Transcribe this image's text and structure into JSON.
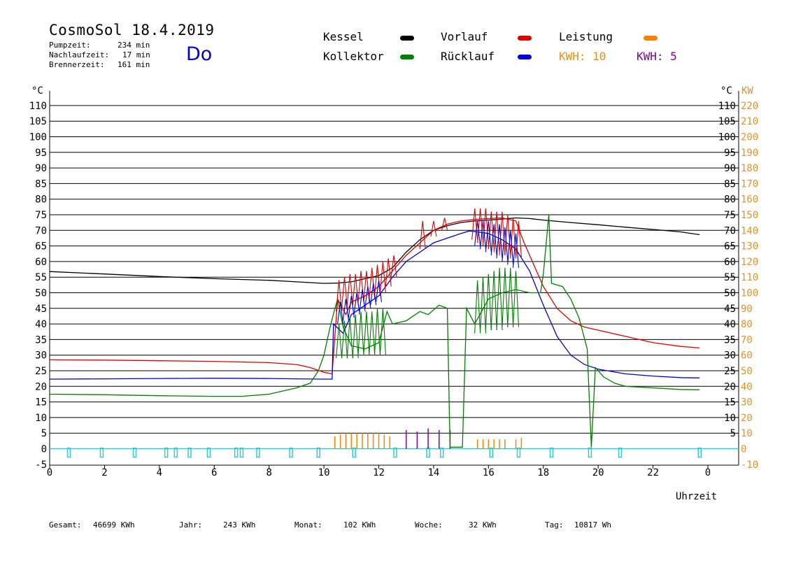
{
  "header": {
    "title": "CosmoSol 18.4.2019",
    "day": "Do",
    "stats": [
      {
        "label": "Pumpzeit:",
        "value": "234 min"
      },
      {
        "label": "Nachlaufzeit:",
        "value": "17 min"
      },
      {
        "label": "Brennerzeit:",
        "value": "161 min"
      }
    ]
  },
  "legend": [
    {
      "label": "Kessel",
      "color": "#000000"
    },
    {
      "label": "Vorlauf",
      "color": "#e00000"
    },
    {
      "label": "Leistung",
      "color": "#ff8000"
    },
    {
      "label": "Kollektor",
      "color": "#008000"
    },
    {
      "label": "Rücklauf",
      "color": "#0000dd"
    }
  ],
  "kwh": [
    {
      "text": "KWH: 10",
      "color": "#e8901e"
    },
    {
      "text": "KWH: 5",
      "color": "#8000a0"
    }
  ],
  "footer": [
    {
      "label": "Gesamt:",
      "value": "46699 KWh"
    },
    {
      "label": "Jahr:",
      "value": "243 KWh"
    },
    {
      "label": "Monat:",
      "value": "102 KWh"
    },
    {
      "label": "Woche:",
      "value": "32 KWh"
    },
    {
      "label": "Tag:",
      "value": "10817 Wh"
    }
  ],
  "chart_data": {
    "type": "line",
    "xlabel": "Uhrzeit",
    "ylabel_left": "°C",
    "ylabel_right": "°C",
    "ylabel_kw": "KW",
    "xlim": [
      0,
      24
    ],
    "ylim": [
      -5,
      113
    ],
    "x_ticks": [
      "0",
      "2",
      "4",
      "6",
      "8",
      "10",
      "12",
      "14",
      "16",
      "18",
      "20",
      "22",
      "0"
    ],
    "y_ticks_left": [
      "-5",
      "0",
      "5",
      "10",
      "15",
      "20",
      "25",
      "30",
      "35",
      "40",
      "45",
      "50",
      "55",
      "60",
      "65",
      "70",
      "75",
      "80",
      "85",
      "90",
      "95",
      "100",
      "105",
      "110"
    ],
    "y_ticks_right": [
      "5",
      "10",
      "15",
      "20",
      "25",
      "30",
      "35",
      "40",
      "45",
      "50",
      "55",
      "60",
      "65",
      "70",
      "75",
      "80",
      "85",
      "90",
      "95",
      "100",
      "105",
      "110"
    ],
    "y_ticks_kw": [
      "-10",
      "0",
      "10",
      "20",
      "30",
      "40",
      "50",
      "60",
      "70",
      "80",
      "90",
      "100",
      "110",
      "120",
      "130",
      "140",
      "150",
      "160",
      "170",
      "180",
      "190",
      "200",
      "210",
      "220"
    ],
    "grid": true,
    "series": [
      {
        "name": "Kessel",
        "color": "#000000",
        "points": [
          [
            0,
            56.8
          ],
          [
            2,
            56
          ],
          [
            4,
            55.2
          ],
          [
            6,
            54.5
          ],
          [
            8,
            54
          ],
          [
            9,
            53.5
          ],
          [
            10,
            53
          ],
          [
            10.5,
            53.1
          ],
          [
            11,
            53.5
          ],
          [
            11.5,
            54.5
          ],
          [
            12,
            55.5
          ],
          [
            12.5,
            58
          ],
          [
            13,
            63
          ],
          [
            13.5,
            67
          ],
          [
            14,
            70
          ],
          [
            14.5,
            71.5
          ],
          [
            15,
            72.5
          ],
          [
            15.5,
            73
          ],
          [
            16,
            73.3
          ],
          [
            16.5,
            73.6
          ],
          [
            17,
            74
          ],
          [
            17.5,
            73.8
          ],
          [
            18,
            73.3
          ],
          [
            19,
            72.5
          ],
          [
            20,
            71.8
          ],
          [
            21,
            71
          ],
          [
            22,
            70.3
          ],
          [
            23,
            69.5
          ],
          [
            23.7,
            68.6
          ]
        ]
      },
      {
        "name": "Vorlauf",
        "color": "#e00000",
        "points": [
          [
            0,
            28.5
          ],
          [
            2,
            28.4
          ],
          [
            4,
            28.2
          ],
          [
            6,
            28
          ],
          [
            8,
            27.6
          ],
          [
            9,
            27
          ],
          [
            9.5,
            26
          ],
          [
            10,
            24.5
          ],
          [
            10.3,
            24
          ],
          [
            10.5,
            48
          ],
          [
            10.8,
            43
          ],
          [
            11,
            47
          ],
          [
            11.5,
            49
          ],
          [
            12,
            52
          ],
          [
            12.5,
            57
          ],
          [
            13,
            62
          ],
          [
            13.5,
            66
          ],
          [
            14,
            70
          ],
          [
            14.5,
            72
          ],
          [
            15,
            73
          ],
          [
            15.5,
            73.5
          ],
          [
            16,
            73.8
          ],
          [
            16.5,
            74
          ],
          [
            17,
            73
          ],
          [
            17.3,
            66
          ],
          [
            17.6,
            60
          ],
          [
            18,
            52
          ],
          [
            18.5,
            45
          ],
          [
            19,
            41
          ],
          [
            19.5,
            39
          ],
          [
            20,
            38
          ],
          [
            21,
            36
          ],
          [
            22,
            34
          ],
          [
            23,
            32.8
          ],
          [
            23.7,
            32.3
          ]
        ]
      },
      {
        "name": "Rücklauf",
        "color": "#0000dd",
        "points": [
          [
            0,
            22.3
          ],
          [
            2,
            22.4
          ],
          [
            4,
            22.5
          ],
          [
            6,
            22.6
          ],
          [
            8,
            22.5
          ],
          [
            9,
            22.4
          ],
          [
            10,
            22.3
          ],
          [
            10.3,
            22.3
          ],
          [
            10.35,
            40
          ],
          [
            10.7,
            37
          ],
          [
            11,
            43
          ],
          [
            11.5,
            46
          ],
          [
            12,
            49
          ],
          [
            12.5,
            55
          ],
          [
            13,
            60
          ],
          [
            13.5,
            63
          ],
          [
            14,
            66
          ],
          [
            14.5,
            67.5
          ],
          [
            15,
            69
          ],
          [
            15.3,
            69.8
          ],
          [
            15.6,
            69.5
          ],
          [
            16,
            69
          ],
          [
            16.5,
            67
          ],
          [
            17,
            64
          ],
          [
            17.5,
            57
          ],
          [
            18,
            46
          ],
          [
            18.5,
            36
          ],
          [
            19,
            30
          ],
          [
            19.5,
            27
          ],
          [
            20,
            25.5
          ],
          [
            21,
            24
          ],
          [
            22,
            23.3
          ],
          [
            23,
            22.8
          ],
          [
            23.7,
            22.7
          ]
        ]
      },
      {
        "name": "Kollektor",
        "color": "#008000",
        "points": [
          [
            0,
            17.5
          ],
          [
            2,
            17.3
          ],
          [
            4,
            17
          ],
          [
            6,
            16.8
          ],
          [
            7,
            16.8
          ],
          [
            8,
            17.5
          ],
          [
            8.5,
            18.5
          ],
          [
            9,
            19.5
          ],
          [
            9.5,
            21
          ],
          [
            9.8,
            25
          ],
          [
            10,
            30
          ],
          [
            10.2,
            38
          ],
          [
            10.4,
            45
          ],
          [
            10.5,
            48
          ],
          [
            10.7,
            39
          ],
          [
            11,
            33
          ],
          [
            11.5,
            32
          ],
          [
            12,
            34
          ],
          [
            12.3,
            44
          ],
          [
            12.5,
            40
          ],
          [
            13,
            41
          ],
          [
            13.5,
            44
          ],
          [
            13.8,
            43
          ],
          [
            14.2,
            46
          ],
          [
            14.5,
            45
          ],
          [
            14.6,
            0.5
          ],
          [
            15.05,
            0.5
          ],
          [
            15.2,
            45
          ],
          [
            15.5,
            40
          ],
          [
            16,
            48
          ],
          [
            16.5,
            50
          ],
          [
            17,
            51
          ],
          [
            17.5,
            50
          ],
          [
            17.9,
            50
          ],
          [
            18,
            56
          ],
          [
            18.2,
            75
          ],
          [
            18.3,
            53
          ],
          [
            18.7,
            52
          ],
          [
            19,
            48
          ],
          [
            19.3,
            42
          ],
          [
            19.6,
            32
          ],
          [
            19.75,
            0.5
          ],
          [
            19.9,
            26
          ],
          [
            20.2,
            23
          ],
          [
            20.6,
            21
          ],
          [
            21,
            20
          ],
          [
            22,
            19.5
          ],
          [
            23,
            19
          ],
          [
            23.7,
            18.9
          ]
        ]
      }
    ],
    "kollektor_spikes": [
      [
        10.55,
        40,
        29
      ],
      [
        10.75,
        41,
        29
      ],
      [
        10.95,
        42,
        29
      ],
      [
        11.15,
        43,
        29
      ],
      [
        11.35,
        44,
        30
      ],
      [
        11.55,
        44,
        30
      ],
      [
        11.75,
        44,
        30
      ],
      [
        11.95,
        45,
        30
      ],
      [
        12.15,
        45,
        30
      ],
      [
        15.6,
        54,
        37
      ],
      [
        15.8,
        55,
        37
      ],
      [
        16.0,
        56,
        38
      ],
      [
        16.2,
        57,
        38
      ],
      [
        16.4,
        58,
        38
      ],
      [
        16.6,
        58,
        39
      ],
      [
        16.8,
        58,
        39
      ],
      [
        17.0,
        57,
        39
      ]
    ],
    "vorlauf_spikes": [
      [
        10.55,
        54,
        44
      ],
      [
        10.75,
        55,
        45
      ],
      [
        10.95,
        56,
        46
      ],
      [
        11.15,
        56,
        46
      ],
      [
        11.35,
        57,
        47
      ],
      [
        11.55,
        57,
        47
      ],
      [
        11.75,
        58,
        48
      ],
      [
        11.95,
        59,
        49
      ],
      [
        12.15,
        60,
        50
      ],
      [
        12.35,
        61,
        52
      ],
      [
        12.55,
        62,
        55
      ],
      [
        13.6,
        73,
        64
      ],
      [
        14.0,
        73,
        68
      ],
      [
        14.4,
        74,
        70
      ],
      [
        15.5,
        77,
        67
      ],
      [
        15.7,
        77,
        66
      ],
      [
        15.9,
        77,
        65
      ],
      [
        16.1,
        76,
        64
      ],
      [
        16.3,
        76,
        63
      ],
      [
        16.5,
        76,
        62
      ],
      [
        16.7,
        75,
        62
      ],
      [
        16.9,
        74,
        61
      ],
      [
        17.1,
        73,
        61
      ]
    ],
    "rucklauf_spikes": [
      [
        10.6,
        47,
        40
      ],
      [
        10.8,
        48,
        41
      ],
      [
        11.0,
        49,
        42
      ],
      [
        11.2,
        50,
        43
      ],
      [
        11.4,
        51,
        44
      ],
      [
        11.6,
        52,
        45
      ],
      [
        11.8,
        53,
        46
      ],
      [
        12.0,
        54,
        47
      ],
      [
        15.6,
        73,
        65
      ],
      [
        15.8,
        73,
        64
      ],
      [
        16.0,
        73,
        63
      ],
      [
        16.2,
        72,
        62
      ],
      [
        16.4,
        72,
        61
      ],
      [
        16.6,
        71,
        60
      ],
      [
        16.8,
        70,
        59
      ],
      [
        17.0,
        69,
        58
      ]
    ],
    "leistung_bars": [
      [
        10.4,
        4
      ],
      [
        10.6,
        4.5
      ],
      [
        10.8,
        5
      ],
      [
        11.0,
        5
      ],
      [
        11.2,
        5
      ],
      [
        11.4,
        5
      ],
      [
        11.6,
        5
      ],
      [
        11.8,
        5
      ],
      [
        12.0,
        5
      ],
      [
        12.2,
        4.5
      ],
      [
        12.4,
        4
      ],
      [
        15.6,
        3
      ],
      [
        15.8,
        3
      ],
      [
        16.0,
        3
      ],
      [
        16.2,
        3
      ],
      [
        16.4,
        3
      ],
      [
        16.6,
        3
      ],
      [
        17.0,
        3
      ],
      [
        17.2,
        3.5
      ]
    ],
    "kwh_bars": [
      [
        13.0,
        6
      ],
      [
        13.4,
        5.5
      ],
      [
        13.8,
        6.5
      ],
      [
        14.2,
        6
      ],
      [
        14.6,
        6
      ]
    ],
    "cyan_markers": [
      0.7,
      1.9,
      3.1,
      4.25,
      4.6,
      5.1,
      5.8,
      6.8,
      7.0,
      7.6,
      8.8,
      9.8,
      11.1,
      12.6,
      13.8,
      14.3,
      16.1,
      17.1,
      18.3,
      19.7,
      20.8,
      23.7
    ]
  }
}
